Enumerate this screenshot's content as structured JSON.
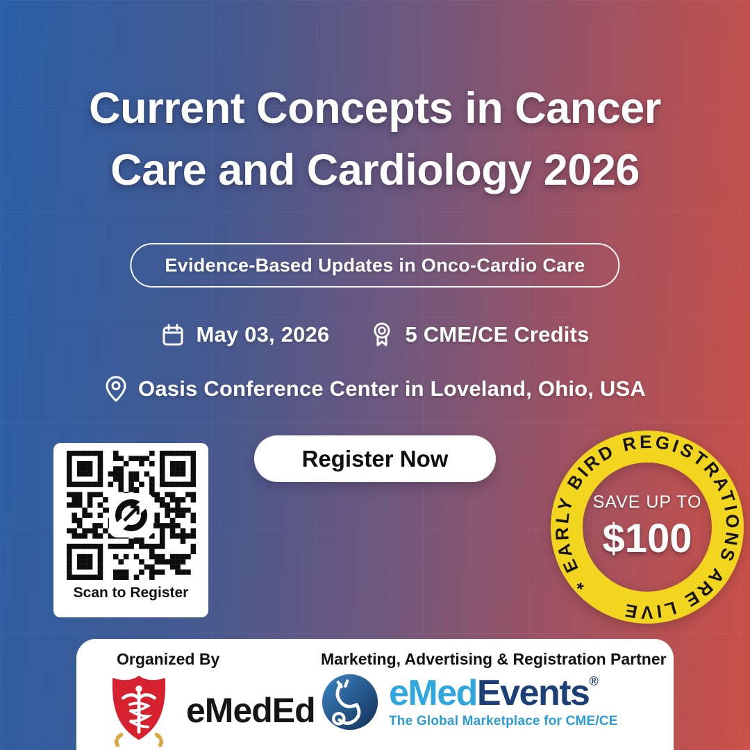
{
  "event": {
    "title_line1": "Current Concepts in Cancer",
    "title_line2": "Care and Cardiology 2026",
    "subtitle": "Evidence-Based Updates in Onco-Cardio Care",
    "date": "May 03, 2026",
    "credits": "5 CME/CE Credits",
    "location": "Oasis Conference Center in Loveland, Ohio, USA"
  },
  "cta": {
    "register_label": "Register Now",
    "qr_caption": "Scan to Register"
  },
  "badge": {
    "ring_text": "* EARLY BIRD REGISTRATIONS ARE LIVE",
    "save_label": "SAVE UP TO",
    "amount": "$100"
  },
  "footer": {
    "organized_by_label": "Organized By",
    "organizer_name": "eMedEd",
    "partner_label": "Marketing, Advertising & Registration Partner",
    "partner_name_light": "eMed",
    "partner_name_dark": "Events",
    "partner_reg_mark": "®",
    "partner_tagline": "The Global Marketplace for CME/CE"
  },
  "icons": {
    "date": "calendar-icon",
    "credits": "award-ribbon-icon",
    "location": "map-pin-icon",
    "qr_center": "circular-arrow-icon"
  },
  "colors": {
    "background_left": "#2A60A6",
    "background_right": "#CB5047",
    "badge_ring_yellow": "#F2D51F",
    "badge_text": "#17140E",
    "organizer_shield_red": "#D6212E",
    "laurel_gold": "#D9A940",
    "partner_light_blue": "#2FA8DF",
    "partner_dark_blue": "#1B3F77",
    "partner_tagline_blue": "#2B9CD6"
  }
}
